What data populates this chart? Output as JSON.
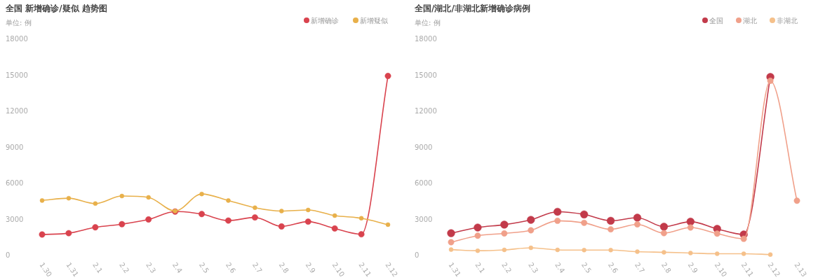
{
  "chart_data": [
    {
      "type": "line",
      "title": "全国 新增确诊/疑似 趋势图",
      "annotations": [
        "单位: 例"
      ],
      "categories": [
        "1.30",
        "1.31",
        "2.1",
        "2.2",
        "2.3",
        "2.4",
        "2.5",
        "2.6",
        "2.7",
        "2.8",
        "2.9",
        "2.10",
        "2.11",
        "2.12"
      ],
      "series": [
        {
          "name": "新增确诊",
          "color": "#d9434e",
          "values": [
            1690,
            1800,
            2290,
            2550,
            2940,
            3600,
            3390,
            2850,
            3110,
            2360,
            2760,
            2190,
            1710,
            14880
          ]
        },
        {
          "name": "新增疑似",
          "color": "#e8b04a",
          "values": [
            4520,
            4710,
            4260,
            4890,
            4780,
            3640,
            5060,
            4520,
            3920,
            3640,
            3730,
            3260,
            3040,
            2510
          ]
        }
      ],
      "ylim": [
        0,
        18000
      ],
      "yticks": [
        0,
        3000,
        6000,
        9000,
        12000,
        15000,
        18000
      ],
      "legend": "top right",
      "marker": "circle",
      "grid": false
    },
    {
      "type": "line",
      "title": "全国/湖北/非湖北新增确诊病例",
      "annotations": [
        "单位: 例"
      ],
      "categories": [
        "1.31",
        "2.1",
        "2.2",
        "2.3",
        "2.4",
        "2.5",
        "2.6",
        "2.7",
        "2.8",
        "2.9",
        "2.10",
        "2.11",
        "2.12",
        "2.13"
      ],
      "series": [
        {
          "name": "全国",
          "color": "#c23a4a",
          "values": [
            1800,
            2270,
            2510,
            2910,
            3580,
            3360,
            2830,
            3090,
            2340,
            2760,
            2160,
            1690,
            14800,
            null
          ]
        },
        {
          "name": "湖北",
          "color": "#f0a08a",
          "values": [
            1050,
            1590,
            1780,
            2040,
            2830,
            2660,
            2120,
            2530,
            1800,
            2270,
            1760,
            1330,
            14480,
            4500
          ]
        },
        {
          "name": "非湖北",
          "color": "#f5c08a",
          "values": [
            430,
            340,
            410,
            580,
            410,
            390,
            390,
            260,
            210,
            150,
            90,
            90,
            20,
            null
          ]
        }
      ],
      "ylim": [
        0,
        18000
      ],
      "yticks": [
        0,
        3000,
        6000,
        9000,
        12000,
        15000,
        18000
      ],
      "legend": "top right",
      "marker": "circle",
      "grid": false
    }
  ]
}
